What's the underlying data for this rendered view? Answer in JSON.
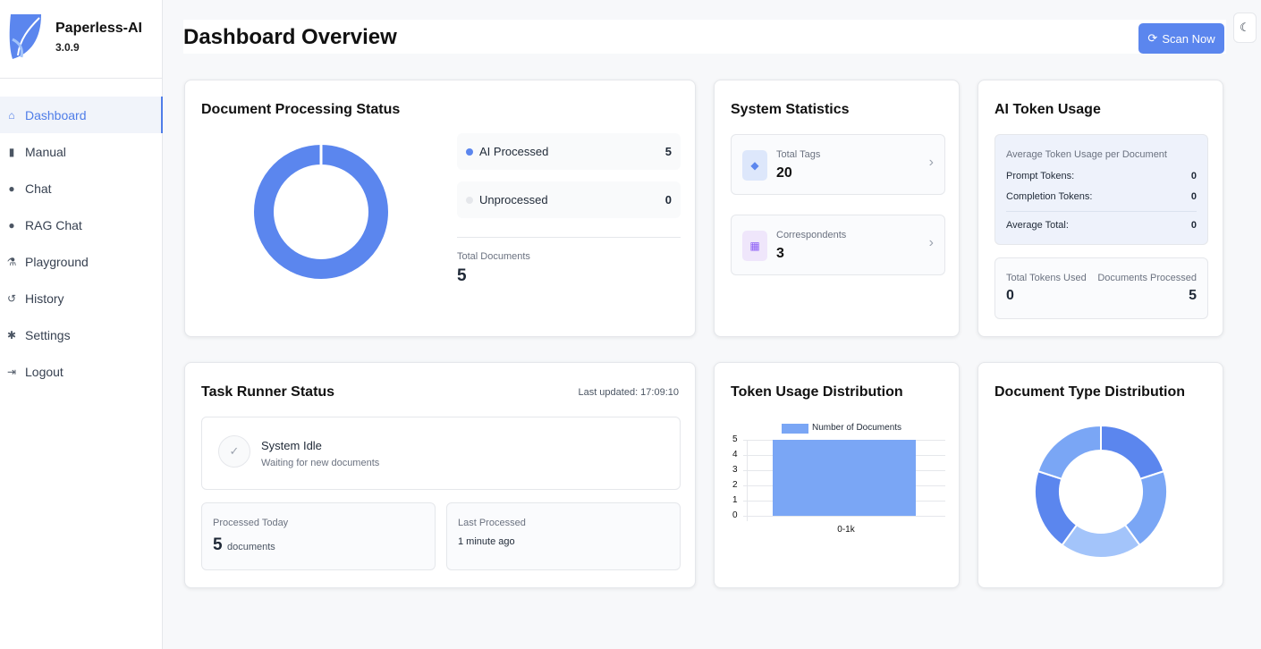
{
  "app": {
    "name": "Paperless-AI",
    "version": "3.0.9"
  },
  "sidebar": {
    "items": [
      {
        "label": "Dashboard",
        "icon": "home-icon",
        "active": true
      },
      {
        "label": "Manual",
        "icon": "file-icon"
      },
      {
        "label": "Chat",
        "icon": "comment-icon"
      },
      {
        "label": "RAG Chat",
        "icon": "comment-icon"
      },
      {
        "label": "Playground",
        "icon": "flask-icon"
      },
      {
        "label": "History",
        "icon": "history-icon"
      },
      {
        "label": "Settings",
        "icon": "gear-icon"
      },
      {
        "label": "Logout",
        "icon": "logout-icon"
      }
    ]
  },
  "header": {
    "title": "Dashboard Overview",
    "scan_label": "Scan Now",
    "accent": "#5b86ee"
  },
  "processing": {
    "title": "Document Processing Status",
    "ai_label": "AI Processed",
    "ai_value": "5",
    "un_label": "Unprocessed",
    "un_value": "0",
    "total_label": "Total Documents",
    "total_value": "5"
  },
  "system": {
    "title": "System Statistics",
    "tags_label": "Total Tags",
    "tags_value": "20",
    "corr_label": "Correspondents",
    "corr_value": "3"
  },
  "tokens": {
    "title": "AI Token Usage",
    "avg_heading": "Average Token Usage per Document",
    "prompt_label": "Prompt Tokens:",
    "prompt_value": "0",
    "completion_label": "Completion Tokens:",
    "completion_value": "0",
    "avg_total_label": "Average Total:",
    "avg_total_value": "0",
    "total_used_label": "Total Tokens Used",
    "total_used_value": "0",
    "docs_processed_label": "Documents Processed",
    "docs_processed_value": "5"
  },
  "tasks": {
    "title": "Task Runner Status",
    "last_updated": "Last updated: 17:09:10",
    "status": "System Idle",
    "status_sub": "Waiting for new documents",
    "today_label": "Processed Today",
    "today_value": "5",
    "today_unit": "documents",
    "last_label": "Last Processed",
    "last_value": "1 minute ago"
  },
  "token_dist_title": "Token Usage Distribution",
  "doc_type_title": "Document Type Distribution",
  "chart_data": [
    {
      "type": "pie",
      "donut": true,
      "slices": [
        {
          "label": "AI Processed",
          "value": 5,
          "color": "#5b86ee"
        },
        {
          "label": "Unprocessed",
          "value": 0,
          "color": "#e5e7eb"
        }
      ]
    },
    {
      "type": "bar",
      "categories": [
        "0-1k"
      ],
      "series": [
        {
          "name": "Number of Documents",
          "values": [
            5
          ],
          "color": "#7aa6f5"
        }
      ],
      "ylim": [
        0,
        5
      ],
      "yticks": [
        "0",
        "1",
        "2",
        "3",
        "4",
        "5"
      ],
      "grid": true,
      "legend": "top"
    },
    {
      "type": "pie",
      "donut": true,
      "values": [
        1,
        1,
        1,
        1,
        1
      ],
      "colors": [
        "#5b86ee",
        "#7aa6f5",
        "#a3c4fa",
        "#5b86ee",
        "#7aa6f5"
      ]
    }
  ]
}
